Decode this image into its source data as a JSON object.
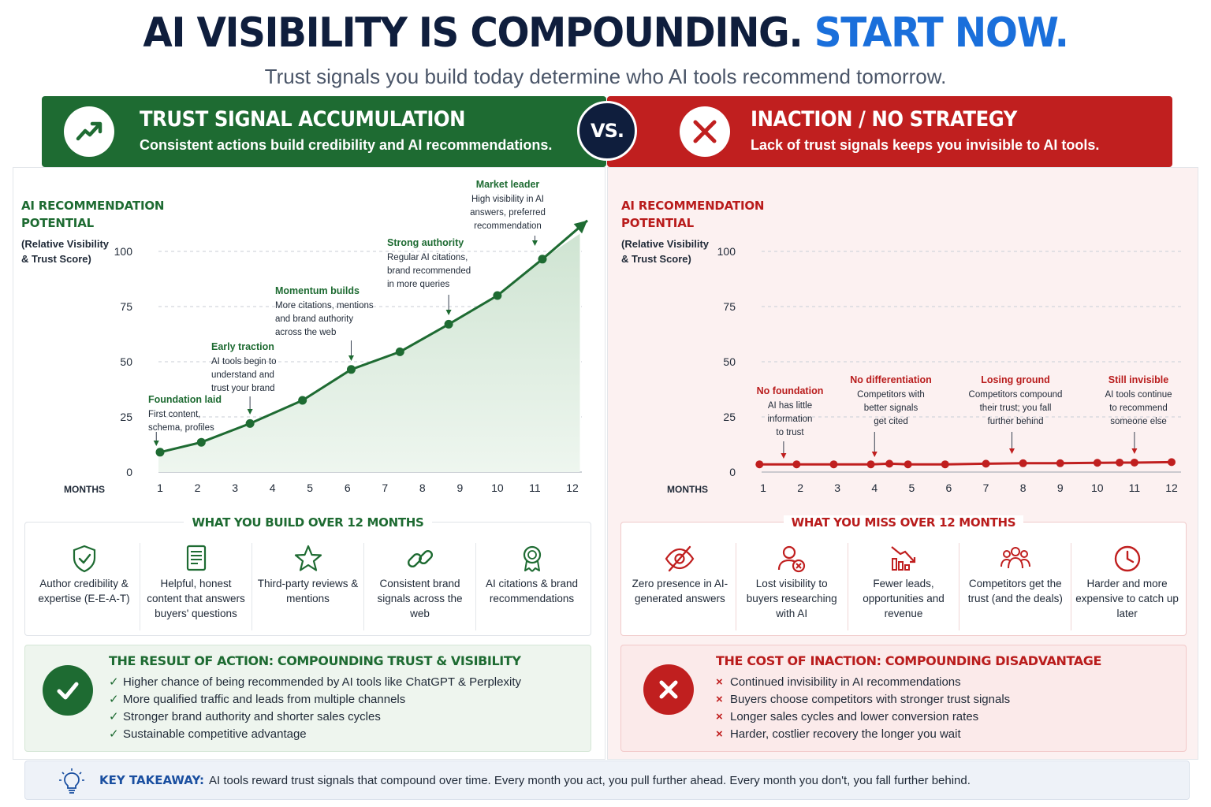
{
  "header": {
    "title_main": "AI VISIBILITY IS COMPOUNDING.",
    "title_accent": "START NOW.",
    "subtitle": "Trust signals you build today determine who AI tools recommend tomorrow."
  },
  "colors": {
    "green": "#1e6b32",
    "red": "#c01f1f",
    "navy": "#0f1e3d",
    "blue": "#1a6fdb"
  },
  "left_banner": {
    "icon": "trending-up-icon",
    "title": "TRUST SIGNAL ACCUMULATION",
    "subtitle": "Consistent actions build credibility and AI recommendations."
  },
  "vs_label": "VS.",
  "right_banner": {
    "icon": "x-icon",
    "title": "INACTION / NO STRATEGY",
    "subtitle": "Lack of trust signals keeps you invisible to AI tools."
  },
  "left_chart": {
    "label_line1": "AI RECOMMENDATION",
    "label_line2": "POTENTIAL",
    "label_sub1": "(Relative Visibility",
    "label_sub2": "& Trust Score)",
    "annotations": [
      {
        "heading": "Foundation laid",
        "lines": [
          "First content,",
          "schema, profiles"
        ]
      },
      {
        "heading": "Early traction",
        "lines": [
          "AI tools begin to",
          "understand and",
          "trust your brand"
        ]
      },
      {
        "heading": "Momentum builds",
        "lines": [
          "More citations, mentions",
          "and brand authority",
          "across the web"
        ]
      },
      {
        "heading": "Strong authority",
        "lines": [
          "Regular AI citations,",
          "brand recommended",
          "in more queries"
        ]
      },
      {
        "heading": "Market leader",
        "lines": [
          "High visibility in AI",
          "answers, preferred",
          "recommendation"
        ]
      }
    ]
  },
  "right_chart": {
    "label_line1": "AI RECOMMENDATION",
    "label_line2": "POTENTIAL",
    "label_sub1": "(Relative Visibility",
    "label_sub2": "& Trust Score)",
    "annotations": [
      {
        "heading": "No foundation",
        "lines": [
          "AI has little",
          "information",
          "to trust"
        ]
      },
      {
        "heading": "No differentiation",
        "lines": [
          "Competitors with",
          "better signals",
          "get cited"
        ]
      },
      {
        "heading": "Losing ground",
        "lines": [
          "Competitors compound",
          "their trust; you fall",
          "further behind"
        ]
      },
      {
        "heading": "Still invisible",
        "lines": [
          "AI tools continue",
          "to recommend",
          "someone else"
        ]
      }
    ]
  },
  "chart_data": [
    {
      "type": "area",
      "title": "AI RECOMMENDATION POTENTIAL",
      "ylabel": "(Relative Visibility & Trust Score)",
      "xlabel": "MONTHS",
      "x": [
        1,
        2,
        3,
        4,
        5,
        6,
        7,
        8,
        9,
        10,
        11,
        12
      ],
      "y_ticks": [
        0,
        25,
        50,
        75,
        100
      ],
      "x_ticks": [
        1,
        2,
        3,
        4,
        5,
        6,
        7,
        8,
        9,
        10,
        11,
        12
      ],
      "ylim": [
        0,
        100
      ],
      "xlim": [
        1,
        12
      ],
      "grid": true,
      "series": [
        {
          "color": "#1e6b32",
          "points": [
            [
              1,
              9
            ],
            [
              2.1,
              13.5
            ],
            [
              3.4,
              22
            ],
            [
              4.8,
              32.5
            ],
            [
              6.1,
              46.5
            ],
            [
              7.4,
              54.5
            ],
            [
              8.7,
              67
            ],
            [
              10,
              80
            ],
            [
              11.2,
              96.5
            ],
            [
              12.4,
              114
            ]
          ]
        }
      ]
    },
    {
      "type": "line",
      "title": "AI RECOMMENDATION POTENTIAL",
      "ylabel": "(Relative Visibility & Trust Score)",
      "xlabel": "MONTHS",
      "x": [
        1,
        2,
        3,
        4,
        5,
        6,
        7,
        8,
        9,
        10,
        11,
        12
      ],
      "y_ticks": [
        0,
        25,
        50,
        75,
        100
      ],
      "x_ticks": [
        1,
        2,
        3,
        4,
        5,
        6,
        7,
        8,
        9,
        10,
        11,
        12
      ],
      "ylim": [
        0,
        100
      ],
      "xlim": [
        1,
        12
      ],
      "grid": true,
      "series": [
        {
          "color": "#c01f1f",
          "points": [
            [
              0.9,
              3.5
            ],
            [
              1.9,
              3.5
            ],
            [
              2.9,
              3.5
            ],
            [
              3.9,
              3.5
            ],
            [
              4.4,
              3.8
            ],
            [
              4.9,
              3.5
            ],
            [
              5.9,
              3.5
            ],
            [
              7,
              3.8
            ],
            [
              8,
              4
            ],
            [
              9,
              4
            ],
            [
              10,
              4.2
            ],
            [
              10.6,
              4.3
            ],
            [
              11,
              4.3
            ],
            [
              12,
              4.5
            ]
          ]
        }
      ]
    }
  ],
  "left_build": {
    "title": "WHAT YOU BUILD OVER 12 MONTHS",
    "items": [
      {
        "icon": "shield-check-icon",
        "label": "Author credibility & expertise (E-E-A-T)"
      },
      {
        "icon": "document-icon",
        "label": "Helpful, honest content that answers buyers' questions"
      },
      {
        "icon": "star-icon",
        "label": "Third-party reviews & mentions"
      },
      {
        "icon": "link-icon",
        "label": "Consistent brand signals across the web"
      },
      {
        "icon": "award-icon",
        "label": "AI citations & brand recommendations"
      }
    ]
  },
  "right_build": {
    "title": "WHAT YOU MISS OVER 12 MONTHS",
    "items": [
      {
        "icon": "eye-off-icon",
        "label": "Zero presence in AI-generated answers"
      },
      {
        "icon": "user-x-icon",
        "label": "Lost visibility to buyers researching with AI"
      },
      {
        "icon": "chart-down-icon",
        "label": "Fewer leads, opportunities and revenue"
      },
      {
        "icon": "users-icon",
        "label": "Competitors get the trust (and the deals)"
      },
      {
        "icon": "clock-icon",
        "label": "Harder and more expensive to catch up later"
      }
    ]
  },
  "left_result": {
    "title": "THE RESULT OF ACTION: COMPOUNDING TRUST & VISIBILITY",
    "marker": "✓",
    "items": [
      "Higher chance of being recommended by AI tools like ChatGPT & Perplexity",
      "More qualified traffic and leads from multiple channels",
      "Stronger brand authority and shorter sales cycles",
      "Sustainable competitive advantage"
    ]
  },
  "right_result": {
    "title": "THE COST OF INACTION: COMPOUNDING DISADVANTAGE",
    "marker": "×",
    "items": [
      "Continued invisibility in AI recommendations",
      "Buyers choose competitors with stronger trust signals",
      "Longer sales cycles and lower conversion rates",
      "Harder, costlier recovery the longer you wait"
    ]
  },
  "takeaway": {
    "icon": "lightbulb-icon",
    "label": "KEY TAKEAWAY:",
    "text": "AI tools reward trust signals that compound over time. Every month you act, you pull further ahead. Every month you don't, you fall further behind."
  }
}
